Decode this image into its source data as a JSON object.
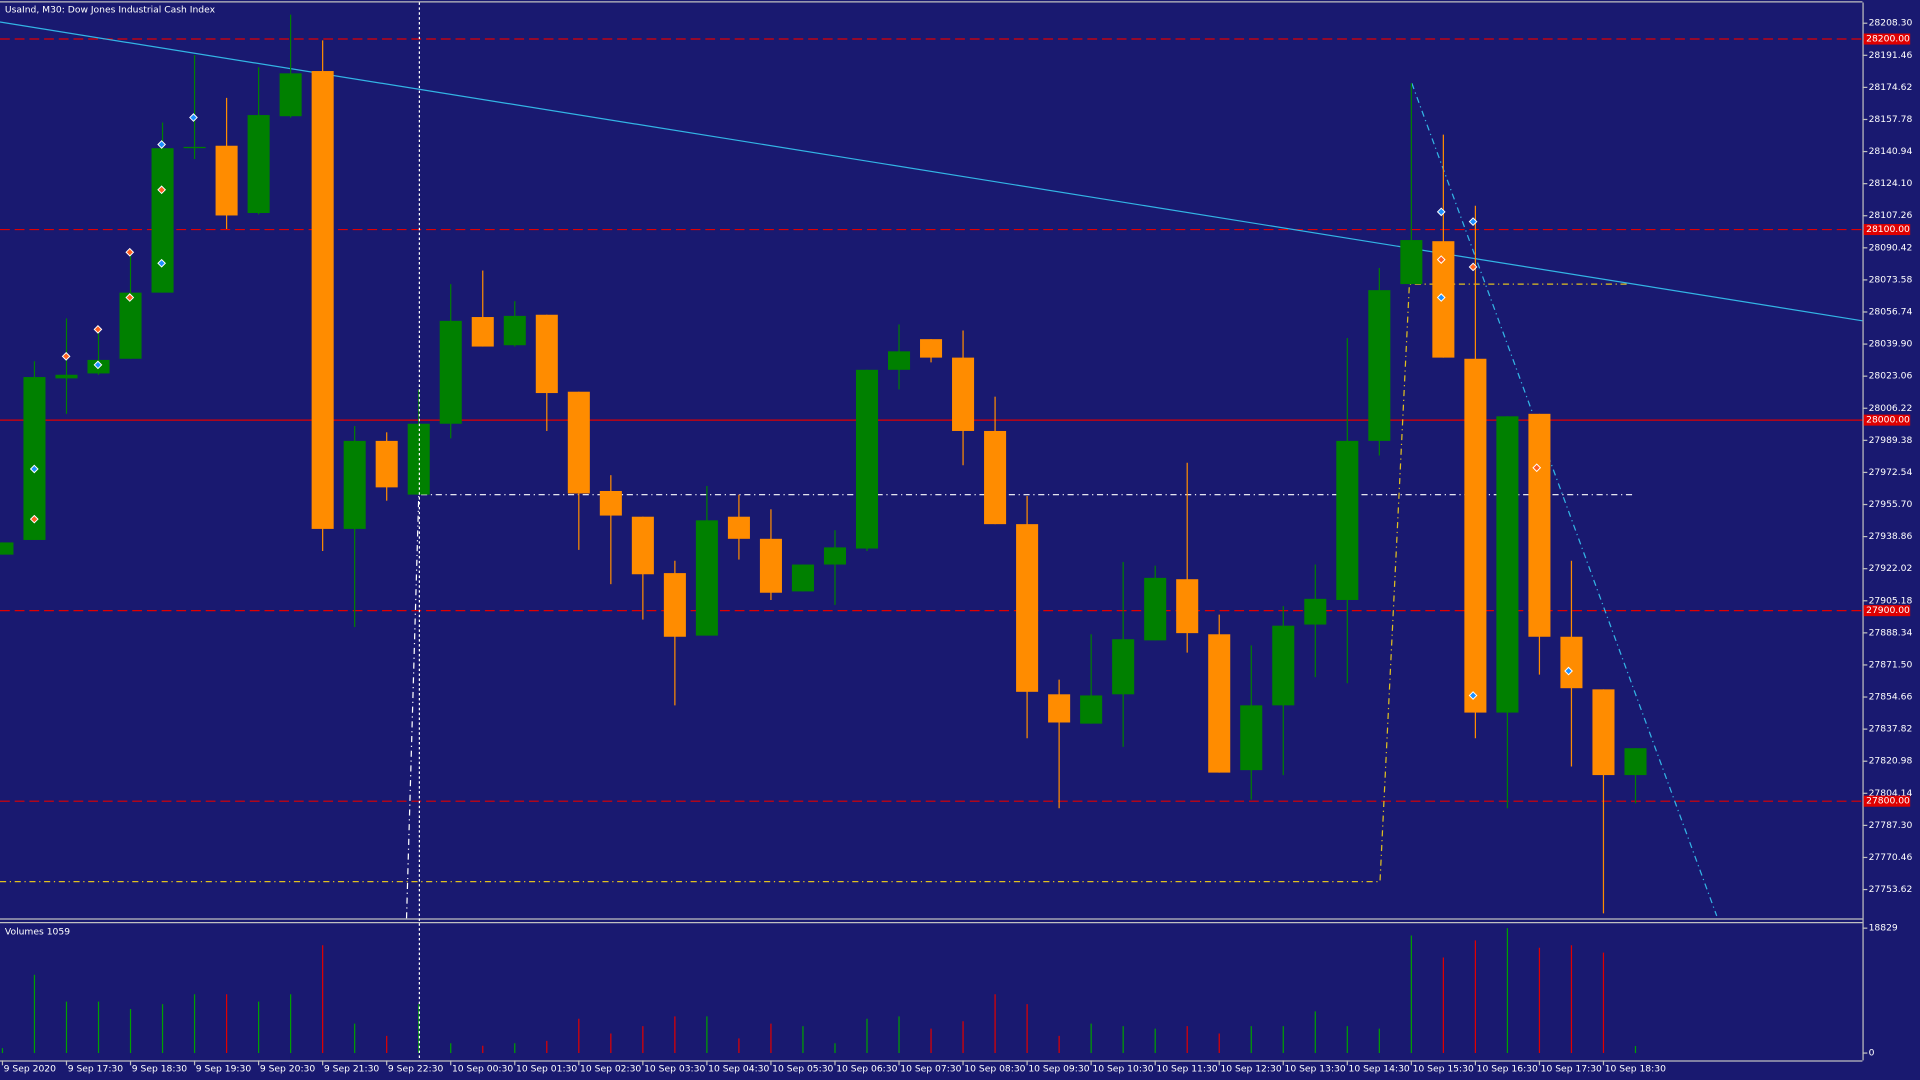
{
  "chart_data": [
    {
      "type": "candlestick",
      "title": "UsaInd, M30: Dow Jones Industrial Cash Index",
      "up_color": "#008000",
      "down_color": "#ff8c00",
      "categories": [
        "9 Sep 2020",
        null,
        "9 Sep 17:30",
        null,
        "9 Sep 18:30",
        null,
        "9 Sep 19:30",
        null,
        "9 Sep 20:30",
        null,
        "9 Sep 21:30",
        null,
        "9 Sep 22:30",
        null,
        "10 Sep 00:30",
        null,
        "10 Sep 01:30",
        null,
        "10 Sep 02:30",
        null,
        "10 Sep 03:30",
        null,
        "10 Sep 04:30",
        null,
        "10 Sep 05:30",
        null,
        "10 Sep 06:30",
        null,
        "10 Sep 07:30",
        null,
        "10 Sep 08:30",
        null,
        "10 Sep 09:30",
        null,
        "10 Sep 10:30",
        null,
        "10 Sep 11:30",
        null,
        "10 Sep 12:30",
        null,
        "10 Sep 13:30",
        null,
        "10 Sep 14:30",
        null,
        "10 Sep 15:30",
        null,
        "10 Sep 16:30",
        null,
        "10 Sep 17:30",
        null,
        "10 Sep 18:30",
        null
      ],
      "open": [
        27929.4,
        27937.1,
        28021.9,
        28024.5,
        28032.2,
        28066.9,
        28142.7,
        28144.0,
        28108.7,
        28159.5,
        28183.2,
        27942.9,
        27989.1,
        27960.9,
        27998.1,
        28054.1,
        28039.3,
        28055.3,
        28014.9,
        27962.8,
        27949.3,
        27919.7,
        27886.9,
        27949.3,
        27937.7,
        27910.1,
        27924.2,
        27932.6,
        28026.4,
        28042.5,
        28032.8,
        27994.3,
        27945.4,
        27856.1,
        27840.7,
        27856.1,
        27884.4,
        27916.5,
        27887.6,
        27816.3,
        27850.3,
        27892.7,
        27905.6,
        27989.1,
        28071.4,
        28093.9,
        28032.2,
        27846.5,
        28003.3,
        27886.3,
        27858.7,
        27813.7
      ],
      "high": [
        27935.8,
        28030.9,
        28053.4,
        28047.0,
        28088.8,
        28156.2,
        28191.6,
        28169.1,
        28185.2,
        28212.8,
        28199.3,
        27996.9,
        27993.6,
        28016.1,
        28071.4,
        28078.5,
        28062.4,
        28055.3,
        28014.9,
        27971.1,
        27949.3,
        27926.2,
        27965.4,
        27960.9,
        27953.2,
        27924.2,
        27942.2,
        28026.4,
        28050.2,
        28042.5,
        28047.0,
        28012.3,
        27960.2,
        27863.8,
        27887.6,
        27925.5,
        27923.6,
        27977.6,
        27897.9,
        27881.8,
        27902.4,
        27924.2,
        28043.1,
        28079.8,
        28176.8,
        28149.8,
        28112.5,
        28002.0,
        28003.3,
        27926.2,
        27858.7,
        27827.8
      ],
      "low": [
        27929.4,
        27937.1,
        28003.3,
        28023.8,
        28032.2,
        28066.9,
        28137.0,
        28100.3,
        28108.0,
        28158.8,
        27931.3,
        27891.4,
        27957.7,
        27960.9,
        27990.4,
        28038.6,
        28038.6,
        27994.3,
        27931.9,
        27913.9,
        27895.3,
        27850.3,
        27886.9,
        27926.8,
        27905.6,
        27910.1,
        27903.0,
        27931.3,
        28016.1,
        28030.3,
        27976.3,
        27945.4,
        27833.0,
        27796.3,
        27840.7,
        27828.5,
        27884.4,
        27878.0,
        27815.0,
        27800.8,
        27813.7,
        27865.1,
        27861.9,
        27981.4,
        28071.4,
        28032.8,
        27833.0,
        27796.3,
        27866.4,
        27818.2,
        27741.1,
        27798.9
      ],
      "close": [
        27935.8,
        28022.6,
        28023.8,
        28031.6,
        28066.9,
        28142.7,
        28143.4,
        28107.4,
        28160.1,
        28182.0,
        27942.9,
        27989.1,
        27964.7,
        27998.1,
        28052.1,
        28038.6,
        28054.7,
        28014.2,
        27961.5,
        27949.9,
        27919.1,
        27886.3,
        27947.4,
        27937.7,
        27909.4,
        27924.2,
        27933.2,
        28026.4,
        28036.1,
        28032.8,
        27994.3,
        27945.4,
        27857.4,
        27841.3,
        27855.5,
        27885.0,
        27917.2,
        27888.2,
        27815.0,
        27850.3,
        27892.1,
        27906.2,
        27989.1,
        28068.2,
        28094.5,
        28032.8,
        27846.5,
        28002.0,
        27886.3,
        27859.3,
        27813.7,
        27827.8
      ],
      "ylim": [
        27738.5,
        28219.2
      ],
      "yticks": [
        {
          "value": 28208.3,
          "label": "28208.30"
        },
        {
          "value": 28191.46,
          "label": "28191.46"
        },
        {
          "value": 28174.62,
          "label": "28174.62"
        },
        {
          "value": 28157.78,
          "label": "28157.78"
        },
        {
          "value": 28140.94,
          "label": "28140.94"
        },
        {
          "value": 28124.1,
          "label": "28124.10"
        },
        {
          "value": 28107.26,
          "label": "28107.26"
        },
        {
          "value": 28090.42,
          "label": "28090.42"
        },
        {
          "value": 28073.58,
          "label": "28073.58"
        },
        {
          "value": 28056.74,
          "label": "28056.74"
        },
        {
          "value": 28039.9,
          "label": "28039.90"
        },
        {
          "value": 28023.06,
          "label": "28023.06"
        },
        {
          "value": 28006.22,
          "label": "28006.22"
        },
        {
          "value": 27989.38,
          "label": "27989.38"
        },
        {
          "value": 27972.54,
          "label": "27972.54"
        },
        {
          "value": 27955.7,
          "label": "27955.70"
        },
        {
          "value": 27938.86,
          "label": "27938.86"
        },
        {
          "value": 27922.02,
          "label": "27922.02"
        },
        {
          "value": 27905.18,
          "label": "27905.18"
        },
        {
          "value": 27888.34,
          "label": "27888.34"
        },
        {
          "value": 27871.5,
          "label": "27871.50"
        },
        {
          "value": 27854.66,
          "label": "27854.66"
        },
        {
          "value": 27837.82,
          "label": "27837.82"
        },
        {
          "value": 27820.98,
          "label": "27820.98"
        },
        {
          "value": 27804.14,
          "label": "27804.14"
        },
        {
          "value": 27787.3,
          "label": "27787.30"
        },
        {
          "value": 27770.46,
          "label": "27770.46"
        },
        {
          "value": 27753.62,
          "label": "27753.62"
        }
      ],
      "levels": [
        {
          "value": 28200,
          "label": "28200.00",
          "style": "dashed"
        },
        {
          "value": 28100,
          "label": "28100.00",
          "style": "dashed"
        },
        {
          "value": 28000,
          "label": "28000.00",
          "style": "solid"
        },
        {
          "value": 27900,
          "label": "27900.00",
          "style": "dashed"
        },
        {
          "value": 27800,
          "label": "27800.00",
          "style": "dashed"
        }
      ],
      "level_color": "#e00000"
    },
    {
      "type": "volume",
      "title": "Volumes 1059",
      "up_color": "#00a000",
      "down_color": "#e00000",
      "values": [
        738,
        11814,
        7753,
        7753,
        6646,
        7384,
        8861,
        8861,
        7753,
        8861,
        16245,
        4430,
        2584,
        7384,
        1477,
        1108,
        1477,
        1846,
        5169,
        2954,
        4061,
        5538,
        5538,
        2215,
        4430,
        4061,
        1477,
        5169,
        5538,
        3692,
        4800,
        8861,
        7384,
        2584,
        4430,
        4061,
        3692,
        4061,
        2954,
        4061,
        4061,
        6276,
        4061,
        3692,
        17722,
        14399,
        16983,
        18829,
        15876,
        16245,
        15137,
        1059
      ],
      "ylim": [
        0,
        18829
      ],
      "yticks": [
        0,
        18829
      ]
    }
  ]
}
